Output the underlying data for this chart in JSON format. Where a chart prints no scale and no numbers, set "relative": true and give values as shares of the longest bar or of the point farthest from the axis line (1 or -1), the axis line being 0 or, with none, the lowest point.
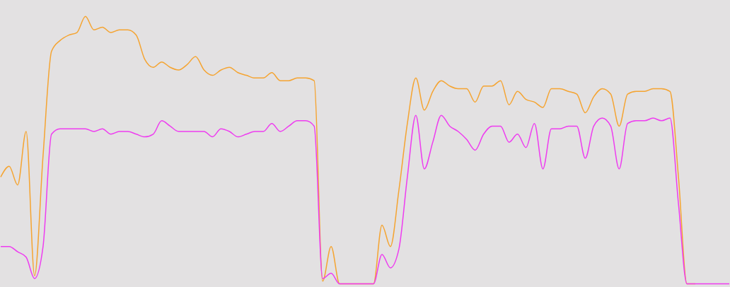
{
  "chart_data": {
    "type": "line",
    "relative": true,
    "grid": false,
    "legend": false,
    "categories": [
      null,
      null,
      null,
      null,
      null,
      null,
      null,
      null,
      null,
      null,
      null,
      null,
      null,
      null,
      null,
      null,
      null,
      null,
      null,
      null,
      null,
      null,
      null,
      null,
      null,
      null,
      null,
      null,
      null,
      null,
      null,
      null,
      null,
      null,
      null,
      null,
      null,
      null,
      null,
      null,
      null,
      null,
      null,
      null,
      null,
      null,
      null,
      null,
      null,
      null,
      null,
      null,
      null,
      null,
      null,
      null,
      null,
      null,
      null,
      null,
      null,
      null,
      null,
      null,
      null,
      null,
      null,
      null,
      null,
      null,
      null,
      null,
      null,
      null,
      null,
      null,
      null,
      null,
      null,
      null,
      null,
      null,
      null,
      null,
      null,
      null,
      null
    ],
    "series": [
      {
        "color": "#f5a431",
        "values": [
          0.4,
          0.44,
          0.37,
          0.57,
          0.03,
          0.48,
          0.87,
          0.91,
          0.93,
          0.94,
          1.0,
          0.95,
          0.96,
          0.94,
          0.95,
          0.95,
          0.93,
          0.84,
          0.81,
          0.83,
          0.81,
          0.8,
          0.82,
          0.85,
          0.8,
          0.78,
          0.8,
          0.81,
          0.79,
          0.78,
          0.77,
          0.77,
          0.79,
          0.76,
          0.76,
          0.77,
          0.77,
          0.76,
          0.01,
          0.14,
          0,
          0,
          0,
          0,
          0,
          0.22,
          0.14,
          0.35,
          0.6,
          0.77,
          0.65,
          0.72,
          0.76,
          0.74,
          0.73,
          0.73,
          0.68,
          0.74,
          0.74,
          0.76,
          0.67,
          0.72,
          0.69,
          0.68,
          0.66,
          0.73,
          0.73,
          0.72,
          0.71,
          0.64,
          0.7,
          0.73,
          0.71,
          0.59,
          0.71,
          0.72,
          0.72,
          0.73,
          0.73,
          0.72,
          0.4,
          0,
          0,
          null,
          null,
          null,
          null
        ]
      },
      {
        "color": "#ee3cf0",
        "values": [
          0.14,
          0.14,
          0.12,
          0.1,
          0.02,
          0.14,
          0.56,
          0.58,
          0.58,
          0.58,
          0.58,
          0.57,
          0.58,
          0.56,
          0.57,
          0.57,
          0.56,
          0.55,
          0.56,
          0.61,
          0.59,
          0.57,
          0.57,
          0.57,
          0.57,
          0.55,
          0.58,
          0.57,
          0.55,
          0.56,
          0.57,
          0.57,
          0.6,
          0.57,
          0.59,
          0.61,
          0.61,
          0.59,
          0.02,
          0.04,
          0,
          0,
          0,
          0,
          0,
          0.11,
          0.06,
          0.13,
          0.4,
          0.63,
          0.43,
          0.53,
          0.63,
          0.59,
          0.57,
          0.54,
          0.5,
          0.56,
          0.59,
          0.59,
          0.53,
          0.56,
          0.51,
          0.6,
          0.43,
          0.58,
          0.58,
          0.59,
          0.59,
          0.47,
          0.59,
          0.62,
          0.59,
          0.43,
          0.6,
          0.61,
          0.61,
          0.62,
          0.61,
          0.62,
          0.3,
          0,
          0,
          0,
          0,
          0,
          0
        ]
      }
    ]
  }
}
